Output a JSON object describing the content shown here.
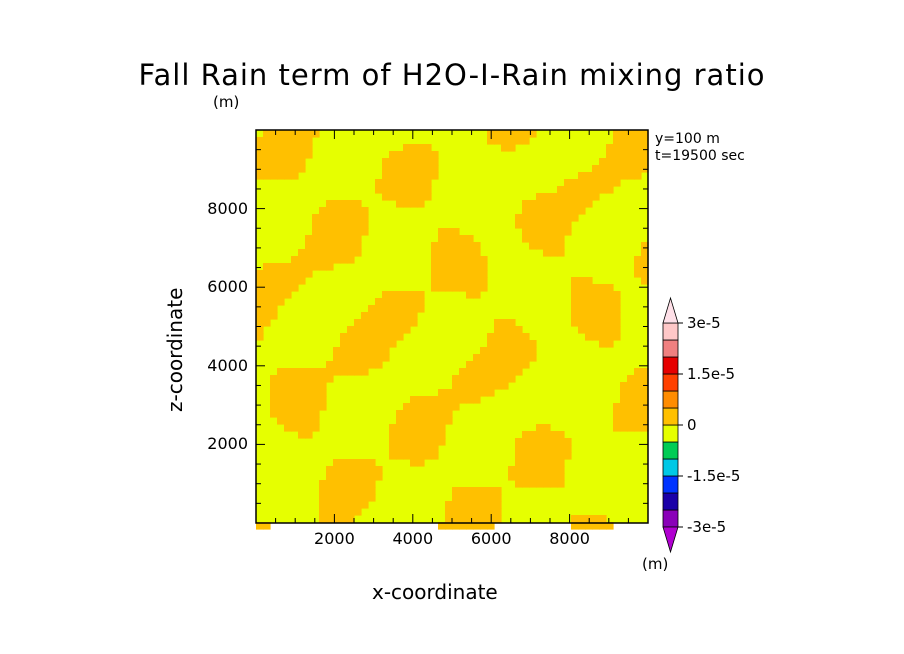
{
  "chart_data": {
    "type": "heatmap",
    "title": "Fall Rain term of H2O-I-Rain mixing ratio",
    "y_unit": "(m)",
    "xlabel": "x-coordinate",
    "ylabel": "z-coordinate",
    "xlim": [
      0,
      10000
    ],
    "ylim": [
      0,
      10000
    ],
    "x_ticks": [
      2000,
      4000,
      6000,
      8000
    ],
    "y_ticks": [
      2000,
      4000,
      6000,
      8000
    ],
    "annotations": [
      "y=100 m",
      "t=19500 sec"
    ],
    "colorbar": {
      "unit": "(m)",
      "tick_labels": [
        "3e-5",
        "1.5e-5",
        "0",
        "-1.5e-5",
        "-3e-5"
      ],
      "levels": [
        -3e-05,
        -2.5e-05,
        -2e-05,
        -1.5e-05,
        -1e-05,
        -5e-06,
        0,
        5e-06,
        1e-05,
        1.5e-05,
        2e-05,
        2.5e-05,
        3e-05
      ],
      "colors_bottom_to_top": [
        "#8a00b8",
        "#1a00a8",
        "#0033ff",
        "#00c8e6",
        "#00cc55",
        "#e6ff00",
        "#ffc000",
        "#ff8c00",
        "#ff4000",
        "#e60000",
        "#f08080",
        "#ffc8c8"
      ],
      "overflow_low_color": "#b000d0",
      "overflow_high_color": "#ffe0e8"
    },
    "field_colors": {
      "near_zero": "#e6ff00",
      "small_positive": "#ffc000"
    }
  }
}
